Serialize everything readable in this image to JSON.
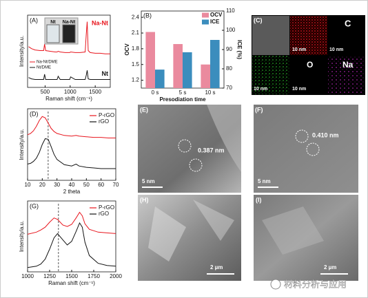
{
  "chart_data": [
    {
      "type": "line",
      "panel": "(A)",
      "xlabel": "Raman shift (cm⁻¹)",
      "ylabel": "Intensity/a.u.",
      "xlim": [
        150,
        1800
      ],
      "xticks": [
        500,
        1000,
        1500
      ],
      "ylim": [
        0,
        11
      ],
      "legend": "direct",
      "x": [
        170,
        230,
        300,
        400,
        470,
        490,
        510,
        600,
        700,
        740,
        760,
        800,
        900,
        990,
        1010,
        1100,
        1200,
        1300,
        1320,
        1340,
        1360,
        1400,
        1500,
        1600,
        1700,
        1800
      ],
      "series": [
        {
          "name": "Na-Nt",
          "color": "#e8141c",
          "values": [
            6.2,
            5.9,
            5.7,
            5.6,
            5.6,
            6.6,
            5.6,
            5.5,
            5.4,
            5.4,
            5.5,
            5.4,
            5.3,
            5.3,
            5.4,
            5.3,
            5.3,
            5.4,
            8,
            10,
            5.6,
            5.3,
            5.2,
            5.2,
            5.1,
            5.1
          ]
        },
        {
          "name": "Nt",
          "color": "#111111",
          "values": [
            1.5,
            1.3,
            1.2,
            1.2,
            1.2,
            2,
            1.2,
            1.2,
            1.2,
            1.2,
            1.7,
            1.2,
            1.2,
            1.2,
            1.6,
            1.2,
            1.2,
            1.2,
            1.8,
            2.6,
            1.3,
            1.2,
            1.2,
            1.2,
            1.2,
            1.2
          ]
        }
      ],
      "sample_legend": [
        "Na-Nt/DME",
        "Nt/DME"
      ],
      "inset_labels": [
        "Nt",
        "Na-Nt"
      ]
    },
    {
      "type": "bar",
      "panel": "(B)",
      "xlabel": "Presodiation time",
      "ylabel": "OCV",
      "y2label": "ICE (%)",
      "categories": [
        "0 s",
        "5 s",
        "10 s"
      ],
      "ylim": [
        1.05,
        2.52
      ],
      "yticks": [
        1.2,
        1.5,
        1.8,
        2.1,
        2.4
      ],
      "y2lim": [
        70,
        110
      ],
      "y2ticks": [
        70,
        80,
        90,
        100,
        110
      ],
      "legend": "upper right",
      "series": [
        {
          "name": "OCV",
          "color": "#ea8a9e",
          "values": [
            2.12,
            1.89,
            1.5
          ]
        },
        {
          "name": "ICE",
          "color": "#3b8dbd",
          "axis": "y2",
          "values": [
            79.6,
            88.6,
            95
          ]
        }
      ]
    },
    {
      "type": "line",
      "panel": "(D)",
      "xlabel": "2 theta",
      "ylabel": "Intensity/a.u.",
      "xlim": [
        10,
        70
      ],
      "xticks": [
        10,
        20,
        30,
        40,
        50,
        60,
        70
      ],
      "ylim": [
        0,
        11
      ],
      "legend": "upper right",
      "reference_x": 24,
      "x": [
        10,
        12,
        14,
        16,
        18,
        20,
        22,
        24,
        26,
        28,
        30,
        35,
        40,
        43,
        45,
        50,
        55,
        60,
        65,
        70
      ],
      "series": [
        {
          "name": "P-rGO",
          "color": "#e8141c",
          "values": [
            7,
            7.2,
            7.6,
            8.3,
            9.2,
            9.8,
            9.6,
            8.8,
            8,
            7.5,
            7.2,
            6.9,
            6.8,
            6.9,
            6.8,
            6.7,
            6.6,
            6.6,
            6.5,
            6.5
          ]
        },
        {
          "name": "rGO",
          "color": "#111111",
          "values": [
            2.5,
            2.6,
            2.9,
            3.4,
            4.3,
            5.5,
            6.4,
            6.3,
            5.2,
            4,
            3.2,
            2.4,
            2.2,
            2.5,
            2.2,
            2,
            1.9,
            1.8,
            1.8,
            1.8
          ]
        }
      ]
    },
    {
      "type": "line",
      "panel": "(G)",
      "xlabel": "Raman shift (cm⁻¹)",
      "ylabel": "Intensity/a.u.",
      "xlim": [
        1000,
        2000
      ],
      "xticks": [
        1000,
        1250,
        1500,
        1750,
        2000
      ],
      "ylim": [
        0,
        10
      ],
      "legend": "upper right",
      "reference_x": 1350,
      "x": [
        1000,
        1100,
        1150,
        1200,
        1250,
        1300,
        1340,
        1400,
        1450,
        1500,
        1550,
        1590,
        1620,
        1650,
        1700,
        1800,
        1900,
        2000
      ],
      "series": [
        {
          "name": "P-rGO",
          "color": "#e8141c",
          "values": [
            5.3,
            5.6,
            5.9,
            6.3,
            7,
            7.6,
            7.4,
            6.6,
            6.4,
            6.7,
            7.6,
            8.4,
            7.9,
            6.8,
            6,
            5.6,
            5.5,
            5.4
          ]
        },
        {
          "name": "rGO",
          "color": "#111111",
          "values": [
            0.6,
            0.8,
            1.1,
            1.8,
            3.2,
            4.8,
            5.4,
            4.5,
            3.8,
            4.3,
            5.7,
            6.9,
            6.3,
            4.2,
            2.3,
            1.2,
            0.9,
            0.8
          ]
        }
      ]
    }
  ],
  "micrographs": {
    "C": {
      "label": "(C)",
      "scale_bars": [
        "10 nm",
        "10 nm",
        "10 nm",
        "10 nm"
      ],
      "elements": [
        "C",
        "O",
        "Na"
      ]
    },
    "E": {
      "label": "(E)",
      "scale_bar": "5 nm",
      "spacing": "0.387 nm"
    },
    "F": {
      "label": "(F)",
      "scale_bar": "5 nm",
      "spacing": "0.410 nm"
    },
    "H": {
      "label": "(H)",
      "scale_bar": "2 µm"
    },
    "I": {
      "label": "(I)",
      "scale_bar": "2 µm"
    }
  },
  "watermark": "材料分析与应用"
}
